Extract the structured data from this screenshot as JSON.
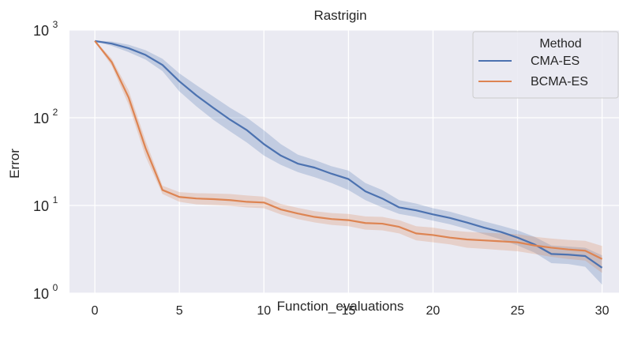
{
  "chart_data": {
    "type": "line",
    "title": "Rastrigin",
    "xlabel": "Function_evaluations",
    "ylabel": "Error",
    "xlim": [
      -1.5,
      31
    ],
    "ylim": [
      1,
      1000
    ],
    "yscale": "log",
    "grid": true,
    "x_ticks": [
      0,
      5,
      10,
      15,
      20,
      25,
      30
    ],
    "x_tick_labels": [
      "0",
      "5",
      "10",
      "15",
      "20",
      "25",
      "30"
    ],
    "y_ticks": [
      1,
      10,
      100,
      1000
    ],
    "y_tick_labels": [
      {
        "base": "10",
        "exp": "0"
      },
      {
        "base": "10",
        "exp": "1"
      },
      {
        "base": "10",
        "exp": "2"
      },
      {
        "base": "10",
        "exp": "3"
      }
    ],
    "legend": {
      "title": "Method",
      "position": "top-right"
    },
    "x": [
      0,
      1,
      2,
      3,
      4,
      5,
      6,
      7,
      8,
      9,
      10,
      11,
      12,
      13,
      14,
      15,
      16,
      17,
      18,
      19,
      20,
      21,
      22,
      23,
      24,
      25,
      26,
      27,
      28,
      29,
      30
    ],
    "series": [
      {
        "name": "CMA-ES",
        "color": "#4c72b0",
        "values": [
          750,
          700,
          620,
          520,
          400,
          260,
          180,
          130,
          95,
          72,
          50,
          37,
          30,
          27,
          23,
          20,
          14.5,
          12,
          9.5,
          8.8,
          7.9,
          7.2,
          6.4,
          5.6,
          5.0,
          4.3,
          3.6,
          2.8,
          2.75,
          2.65,
          1.95
        ],
        "lower": [
          740,
          660,
          560,
          460,
          340,
          200,
          135,
          95,
          70,
          52,
          37,
          29,
          24,
          21,
          18,
          15,
          11.5,
          9.5,
          8.0,
          7.4,
          6.7,
          6.1,
          5.4,
          4.7,
          4.1,
          3.5,
          2.9,
          2.2,
          2.15,
          2.0,
          1.25
        ],
        "upper": [
          760,
          740,
          680,
          590,
          470,
          320,
          235,
          175,
          130,
          100,
          72,
          50,
          38,
          33,
          28,
          25,
          18,
          15,
          11.5,
          10.5,
          9.3,
          8.5,
          7.5,
          6.6,
          5.9,
          5.2,
          4.4,
          3.5,
          3.4,
          3.3,
          2.7
        ]
      },
      {
        "name": "BCMA-ES",
        "color": "#dd8452",
        "values": [
          750,
          430,
          170,
          45,
          15,
          12.5,
          12,
          11.8,
          11.5,
          11,
          10.8,
          9,
          8.1,
          7.4,
          7,
          6.8,
          6.3,
          6.2,
          5.7,
          4.8,
          4.6,
          4.3,
          4.1,
          4.0,
          3.9,
          3.8,
          3.5,
          3.3,
          3.15,
          3.05,
          2.45
        ],
        "lower": [
          740,
          390,
          140,
          36,
          13.5,
          11.0,
          10.3,
          10.1,
          9.9,
          9.5,
          9.3,
          7.9,
          7.0,
          6.4,
          6.0,
          5.8,
          5.3,
          5.2,
          4.8,
          4.0,
          3.8,
          3.6,
          3.3,
          3.2,
          3.1,
          3.0,
          2.8,
          2.6,
          2.45,
          2.35,
          1.7
        ],
        "upper": [
          760,
          470,
          205,
          55,
          16.8,
          14.2,
          13.8,
          13.7,
          13.5,
          13.0,
          12.6,
          10.4,
          9.4,
          8.6,
          8.2,
          8.0,
          7.5,
          7.4,
          6.8,
          5.8,
          5.6,
          5.2,
          5.0,
          4.9,
          4.8,
          4.7,
          4.4,
          4.2,
          4.05,
          3.95,
          3.45
        ]
      }
    ]
  },
  "colors": {
    "plot_background": "#eaeaf2",
    "grid": "#ffffff",
    "text": "#262626",
    "legend_background": "#eaeaf2",
    "legend_border": "#cccccc"
  }
}
